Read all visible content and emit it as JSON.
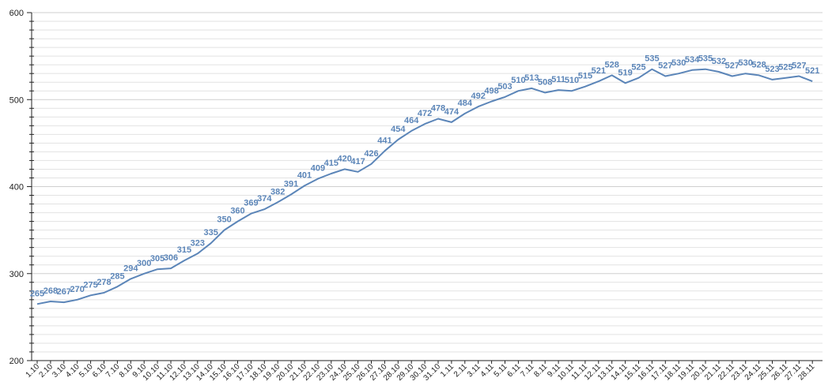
{
  "chart_data": {
    "type": "line",
    "title": "",
    "xlabel": "",
    "ylabel": "",
    "ylim": [
      200,
      600
    ],
    "y_ticks": [
      200,
      300,
      400,
      500,
      600
    ],
    "grid": true,
    "legend": "none",
    "colors": {
      "line": "#5b85b8",
      "label": "#5b85b8",
      "grid": "#e2e2e2",
      "axis": "#222222"
    },
    "x": [
      "1.10",
      "2.10",
      "3.10",
      "4.10",
      "5.10",
      "6.10",
      "7.10",
      "8.10",
      "9.10",
      "10.10",
      "11.10",
      "12.10",
      "13.10",
      "14.10",
      "15.10",
      "16.10",
      "17.10",
      "18.10",
      "19.10",
      "20.10",
      "21.10",
      "22.10",
      "23.10",
      "24.10",
      "25.10",
      "26.10",
      "27.10",
      "28.10",
      "29.10",
      "30.10",
      "31.10",
      "1.11",
      "2.11",
      "3.11",
      "4.11",
      "5.11",
      "6.11",
      "7.11",
      "8.11",
      "9.11",
      "10.11",
      "11.11",
      "12.11",
      "13.11",
      "14.11",
      "15.11",
      "16.11",
      "17.11",
      "18.11",
      "19.11",
      "20.11",
      "21.11",
      "22.11",
      "23.11",
      "24.11",
      "25.11",
      "26.11",
      "27.11",
      "28.11"
    ],
    "series": [
      {
        "values": [
          265,
          268,
          267,
          270,
          275,
          278,
          285,
          294,
          300,
          305,
          306,
          315,
          323,
          335,
          350,
          360,
          369,
          374,
          382,
          391,
          401,
          409,
          415,
          420,
          417,
          426,
          441,
          454,
          464,
          472,
          478,
          474,
          484,
          492,
          498,
          503,
          510,
          513,
          508,
          511,
          510,
          515,
          521,
          528,
          519,
          525,
          535,
          527,
          530,
          534,
          535,
          532,
          527,
          530,
          528,
          523,
          525,
          527,
          521
        ]
      }
    ]
  }
}
